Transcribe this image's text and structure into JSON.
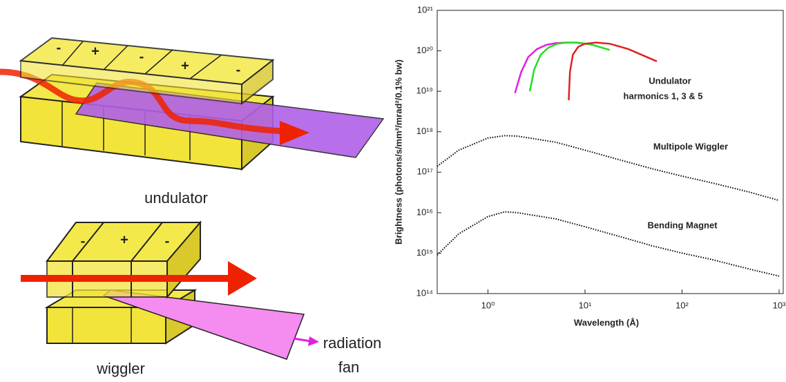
{
  "diagram": {
    "undulator": {
      "label": "undulator",
      "signs": [
        "-",
        "+",
        "-",
        "+",
        "-"
      ]
    },
    "wiggler": {
      "label": "wiggler",
      "signs": [
        "-",
        "+",
        "-"
      ],
      "output_label": [
        "radiation",
        "fan"
      ]
    }
  },
  "chart_data": {
    "type": "line",
    "xlabel": "Wavelength (Å)",
    "ylabel": "Brightness (photons/s/mm²/mrad²/0.1% bw)",
    "xscale": "log",
    "yscale": "log",
    "xlim": [
      0.3,
      1000
    ],
    "ylim": [
      100000000000000.0,
      1e+21
    ],
    "xticks": [
      {
        "value": 1,
        "label": "10⁰"
      },
      {
        "value": 10,
        "label": "10¹"
      },
      {
        "value": 100,
        "label": "10²"
      },
      {
        "value": 1000,
        "label": "10³"
      }
    ],
    "yticks": [
      {
        "value": 100000000000000.0,
        "label": "10¹⁴"
      },
      {
        "value": 1000000000000000.0,
        "label": "10¹⁵"
      },
      {
        "value": 1e+16,
        "label": "10¹⁶"
      },
      {
        "value": 1e+17,
        "label": "10¹⁷"
      },
      {
        "value": 1e+18,
        "label": "10¹⁸"
      },
      {
        "value": 1e+19,
        "label": "10¹⁹"
      },
      {
        "value": 1e+20,
        "label": "10²⁰"
      },
      {
        "value": 1e+21,
        "label": "10²¹"
      }
    ],
    "annotations": [
      "Undulator",
      "harmonics 1, 3 & 5",
      "Multipole Wiggler",
      "Bending Magnet"
    ],
    "series": [
      {
        "color": "#e020e0",
        "style": "solid",
        "x": [
          1.9,
          2.2,
          2.6,
          3.2,
          4,
          5,
          6.5,
          8,
          10
        ],
        "values": [
          9e+18,
          3e+19,
          7e+19,
          1.1e+20,
          1.4e+20,
          1.55e+20,
          1.6e+20,
          1.6e+20,
          1.5e+20
        ]
      },
      {
        "color": "#22dd22",
        "style": "solid",
        "x": [
          2.7,
          3,
          3.5,
          4.2,
          5.2,
          6.5,
          8.5,
          12,
          18
        ],
        "values": [
          1e+19,
          3.5e+19,
          8e+19,
          1.2e+20,
          1.5e+20,
          1.6e+20,
          1.6e+20,
          1.4e+20,
          1.05e+20
        ]
      },
      {
        "color": "#e02020",
        "style": "solid",
        "x": [
          6.8,
          7,
          7.5,
          8.5,
          10,
          13,
          18,
          28,
          55
        ],
        "values": [
          6e+18,
          3e+19,
          8e+19,
          1.25e+20,
          1.5e+20,
          1.6e+20,
          1.5e+20,
          1.1e+20,
          5.5e+19
        ]
      },
      {
        "color": "#000000",
        "style": "dotted",
        "x": [
          0.3,
          0.5,
          1,
          1.5,
          2,
          5,
          10,
          20,
          50,
          100,
          200,
          500,
          1000
        ],
        "values": [
          1.4e+17,
          3.5e+17,
          7e+17,
          8e+17,
          7.8e+17,
          5.5e+17,
          3.5e+17,
          2.2e+17,
          1.2e+17,
          8e+16,
          5.5e+16,
          3.2e+16,
          2e+16
        ]
      },
      {
        "color": "#000000",
        "style": "dotted",
        "x": [
          0.3,
          0.5,
          1,
          1.5,
          2,
          5,
          10,
          20,
          50,
          100,
          200,
          500,
          1000
        ],
        "values": [
          900000000000000.0,
          3000000000000000.0,
          8000000000000000.0,
          1.05e+16,
          1e+16,
          7000000000000000.0,
          4500000000000000.0,
          2800000000000000.0,
          1500000000000000.0,
          1000000000000000.0,
          700000000000000.0,
          400000000000000.0,
          270000000000000.0
        ]
      }
    ]
  }
}
